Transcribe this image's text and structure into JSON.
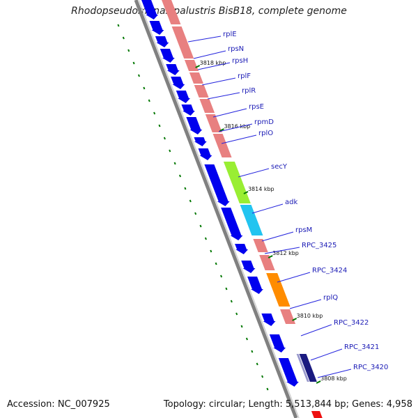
{
  "title": "Rhodopseudomonas palustris BisB18, complete genome",
  "accession": "Accession: NC_007925",
  "topology": "Topology: circular; Length: 5,513,844 bp; Genes: 4,958",
  "colors": {
    "backbone": "#808080",
    "reverse_strand_gene": "#0000ee",
    "ribosomal_gene": "#e88080",
    "secY": "#99ee33",
    "adk": "#22c4f0",
    "rpc_3424": "#ff8c00",
    "label_line": "#2222dd",
    "tick": "#007700"
  },
  "kbp_ticks": [
    "3818 kbp",
    "3816 kbp",
    "3814 kbp",
    "3812 kbp",
    "3810 kbp",
    "3808 kbp"
  ],
  "gene_labels": [
    "rplE",
    "rpsN",
    "rpsH",
    "rplF",
    "rplR",
    "rpsE",
    "rpmD",
    "rplO",
    "secY",
    "adk",
    "rpsM",
    "RPC_3425",
    "RPC_3424",
    "rplQ",
    "RPC_3422",
    "RPC_3421",
    "RPC_3420"
  ]
}
